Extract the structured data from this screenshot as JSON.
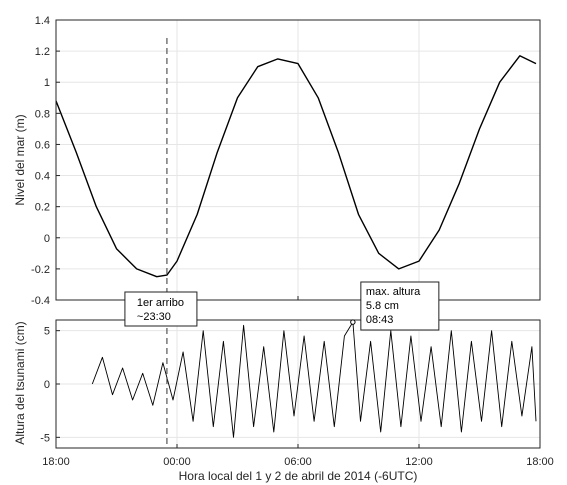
{
  "chart_data": [
    {
      "type": "line",
      "ylabel": "Nivel del mar (m)",
      "ylim": [
        -0.4,
        1.4
      ],
      "y_ticks": [
        "-0.4",
        "-0.2",
        "0",
        "0.2",
        "0.4",
        "0.6",
        "0.8",
        "1",
        "1.2",
        "1.4"
      ],
      "xlim_hours": [
        18,
        42
      ],
      "grid": true,
      "series": [
        {
          "x_hours": [
            18.0,
            19.0,
            20.0,
            21.0,
            22.0,
            23.0,
            23.5,
            24.0,
            25.0,
            26.0,
            27.0,
            28.0,
            29.0,
            30.0,
            31.0,
            32.0,
            33.0,
            34.0,
            35.0,
            36.0,
            37.0,
            38.0,
            39.0,
            40.0,
            41.0,
            41.8
          ],
          "values": [
            0.88,
            0.55,
            0.2,
            -0.07,
            -0.2,
            -0.25,
            -0.24,
            -0.15,
            0.15,
            0.55,
            0.9,
            1.1,
            1.15,
            1.12,
            0.9,
            0.55,
            0.15,
            -0.1,
            -0.2,
            -0.15,
            0.05,
            0.35,
            0.7,
            1.0,
            1.17,
            1.12
          ]
        }
      ]
    },
    {
      "type": "line",
      "xlabel": "Hora local del 1 y 2 de abril de 2014 (-6UTC)",
      "ylabel": "Altura del tsunami (cm)",
      "ylim": [
        -6,
        6
      ],
      "y_ticks": [
        "-5",
        "0",
        "5"
      ],
      "x_ticks": [
        "18:00",
        "00:00",
        "06:00",
        "12:00",
        "18:00"
      ],
      "grid": true,
      "series": [
        {
          "x_hours": [
            19.8,
            20.3,
            20.8,
            21.3,
            21.8,
            22.3,
            22.8,
            23.3,
            23.8,
            24.3,
            24.8,
            25.3,
            25.8,
            26.3,
            26.8,
            27.3,
            27.8,
            28.3,
            28.8,
            29.3,
            29.8,
            30.3,
            30.8,
            31.3,
            31.8,
            32.3,
            32.72,
            33.1,
            33.6,
            34.1,
            34.6,
            35.1,
            35.6,
            36.1,
            36.6,
            37.1,
            37.6,
            38.1,
            38.6,
            39.1,
            39.6,
            40.1,
            40.6,
            41.1,
            41.6,
            41.8
          ],
          "values": [
            0.0,
            2.5,
            -1.0,
            1.5,
            -1.5,
            1.0,
            -2.0,
            2.0,
            -1.5,
            3.0,
            -3.5,
            5.0,
            -4.0,
            4.0,
            -5.0,
            5.5,
            -4.0,
            3.5,
            -4.5,
            5.0,
            -3.0,
            4.5,
            -3.5,
            4.0,
            -4.0,
            4.5,
            5.8,
            -3.5,
            4.0,
            -4.5,
            5.0,
            -4.0,
            4.5,
            -3.5,
            3.5,
            -4.0,
            5.0,
            -4.5,
            4.0,
            -3.5,
            5.0,
            -4.0,
            4.0,
            -3.0,
            3.5,
            -3.5
          ]
        }
      ],
      "annotations": [
        {
          "kind": "vline",
          "x_hours": 23.5,
          "lines": [
            "1er arribo",
            "~23:30"
          ]
        },
        {
          "kind": "point",
          "x_hours": 32.72,
          "y": 5.8,
          "lines": [
            "max. altura",
            "5.8 cm",
            "08:43"
          ]
        }
      ]
    }
  ]
}
